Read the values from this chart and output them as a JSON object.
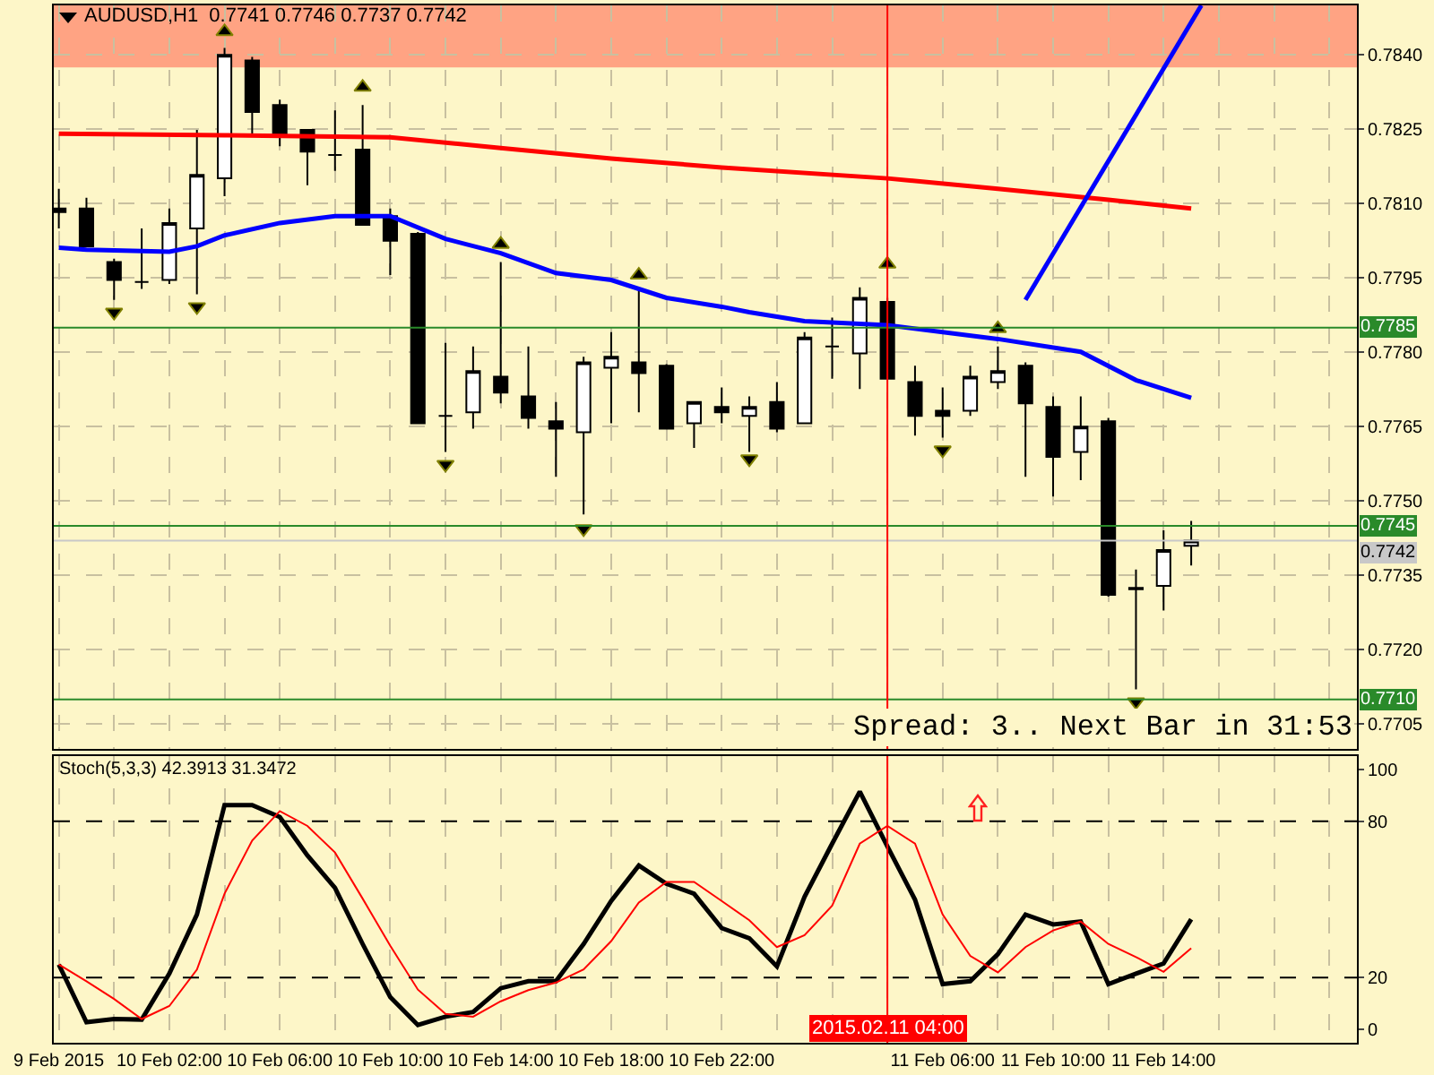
{
  "chart_data": [
    {
      "type": "candlestick",
      "title": "AUDUSD,H1  0.7741 0.7746 0.7737 0.7742",
      "color": "#000000",
      "x": [
        "2015-02-09T22:00",
        "2015-02-09T23:00",
        "2015-02-10T00:00",
        "2015-02-10T01:00",
        "2015-02-10T02:00",
        "2015-02-10T03:00",
        "2015-02-10T04:00",
        "2015-02-10T05:00",
        "2015-02-10T06:00",
        "2015-02-10T07:00",
        "2015-02-10T08:00",
        "2015-02-10T09:00",
        "2015-02-10T10:00",
        "2015-02-10T11:00",
        "2015-02-10T12:00",
        "2015-02-10T13:00",
        "2015-02-10T14:00",
        "2015-02-10T15:00",
        "2015-02-10T16:00",
        "2015-02-10T17:00",
        "2015-02-10T18:00",
        "2015-02-10T19:00",
        "2015-02-10T20:00",
        "2015-02-10T21:00",
        "2015-02-10T22:00",
        "2015-02-10T23:00",
        "2015-02-11T00:00",
        "2015-02-11T01:00",
        "2015-02-11T02:00",
        "2015-02-11T03:00",
        "2015-02-11T04:00",
        "2015-02-11T05:00",
        "2015-02-11T06:00",
        "2015-02-11T07:00",
        "2015-02-11T08:00",
        "2015-02-11T09:00",
        "2015-02-11T10:00",
        "2015-02-11T11:00",
        "2015-02-11T12:00",
        "2015-02-11T13:00",
        "2015-02-11T14:00",
        "2015-02-11T15:00"
      ],
      "ohlc": [
        [
          0.7809,
          0.7813,
          0.7805,
          0.78083
        ],
        [
          0.7809,
          0.78112,
          0.78014,
          0.78014
        ],
        [
          0.77982,
          0.77989,
          0.77906,
          0.77946
        ],
        [
          0.77942,
          0.7805,
          0.77928,
          0.77942
        ],
        [
          0.77946,
          0.7809,
          0.77938,
          0.78061
        ],
        [
          0.7805,
          0.78249,
          0.77917,
          0.78158
        ],
        [
          0.78151,
          0.78414,
          0.78115,
          0.784
        ],
        [
          0.78389,
          0.78396,
          0.78241,
          0.78285
        ],
        [
          0.78299,
          0.7831,
          0.78216,
          0.78241
        ],
        [
          0.78249,
          0.78249,
          0.78137,
          0.78205
        ],
        [
          0.78198,
          0.78288,
          0.78166,
          0.78198
        ],
        [
          0.78209,
          0.78299,
          0.78057,
          0.78057
        ],
        [
          0.78075,
          0.7809,
          0.77956,
          0.78025
        ],
        [
          0.78039,
          0.78043,
          0.77657,
          0.77657
        ],
        [
          0.77672,
          0.77819,
          0.77599,
          0.77672
        ],
        [
          0.77679,
          0.77812,
          0.77646,
          0.77762
        ],
        [
          0.77751,
          0.77982,
          0.77697,
          0.77719
        ],
        [
          0.77711,
          0.77812,
          0.77646,
          0.77668
        ],
        [
          0.77661,
          0.777,
          0.77549,
          0.77646
        ],
        [
          0.77639,
          0.77791,
          0.77473,
          0.7778
        ],
        [
          0.77769,
          0.77841,
          0.77657,
          0.77791
        ],
        [
          0.7778,
          0.77924,
          0.77679,
          0.77758
        ],
        [
          0.77773,
          0.77776,
          0.77646,
          0.77646
        ],
        [
          0.77657,
          0.777,
          0.77607,
          0.777
        ],
        [
          0.7769,
          0.77729,
          0.77657,
          0.77679
        ],
        [
          0.77672,
          0.77711,
          0.77599,
          0.7769
        ],
        [
          0.777,
          0.7774,
          0.77639,
          0.77646
        ],
        [
          0.77657,
          0.77841,
          0.77657,
          0.7783
        ],
        [
          0.77812,
          0.7787,
          0.77747,
          0.77812
        ],
        [
          0.77798,
          0.77931,
          0.77726,
          0.7791
        ],
        [
          0.77902,
          0.7791,
          0.77747,
          0.77747
        ],
        [
          0.7774,
          0.77773,
          0.77632,
          0.77672
        ],
        [
          0.77682,
          0.77729,
          0.77628,
          0.77672
        ],
        [
          0.77682,
          0.77773,
          0.77672,
          0.77751
        ],
        [
          0.7774,
          0.77812,
          0.77726,
          0.77762
        ],
        [
          0.77773,
          0.7778,
          0.77549,
          0.77697
        ],
        [
          0.7769,
          0.77711,
          0.77509,
          0.77589
        ],
        [
          0.77599,
          0.77711,
          0.77542,
          0.7765
        ],
        [
          0.77661,
          0.77668,
          0.77307,
          0.77311
        ],
        [
          0.77325,
          0.77362,
          0.7712,
          0.77322
        ],
        [
          0.77329,
          0.77441,
          0.77279,
          0.77401
        ],
        [
          0.7741,
          0.7746,
          0.7737,
          0.7742
        ]
      ],
      "series": [
        {
          "type": "line",
          "color": "#ff0000",
          "x": [
            "2015-02-09T22:00",
            "2015-02-10T04:00",
            "2015-02-10T10:00",
            "2015-02-10T14:00",
            "2015-02-10T18:00",
            "2015-02-10T22:00",
            "2015-02-11T04:00",
            "2015-02-11T08:00",
            "2015-02-11T12:00",
            "2015-02-11T15:00"
          ],
          "values": [
            0.78241,
            0.78238,
            0.78234,
            0.78212,
            0.78191,
            0.78173,
            0.78151,
            0.7813,
            0.78108,
            0.7809
          ]
        },
        {
          "type": "line",
          "color": "#0000ff",
          "x": [
            "2015-02-09T22:00",
            "2015-02-09T23:00",
            "2015-02-10T02:00",
            "2015-02-10T03:00",
            "2015-02-10T04:00",
            "2015-02-10T06:00",
            "2015-02-10T08:00",
            "2015-02-10T10:00",
            "2015-02-10T12:00",
            "2015-02-10T14:00",
            "2015-02-10T16:00",
            "2015-02-10T18:00",
            "2015-02-10T20:00",
            "2015-02-10T22:00",
            "2015-02-10T23:00",
            "2015-02-11T01:00",
            "2015-02-11T04:00",
            "2015-02-11T08:00",
            "2015-02-11T11:00",
            "2015-02-11T13:00",
            "2015-02-11T15:00"
          ],
          "values": [
            0.78011,
            0.78007,
            0.78003,
            0.78014,
            0.78036,
            0.78061,
            0.78075,
            0.78075,
            0.78029,
            0.78,
            0.7796,
            0.77946,
            0.7791,
            0.77892,
            0.77881,
            0.77863,
            0.77855,
            0.77827,
            0.77801,
            0.77744,
            0.77708
          ]
        },
        {
          "type": "line",
          "color": "#0000ff",
          "x": [
            "2015-02-11T09:00",
            "2015-02-11T15:22"
          ],
          "values": [
            0.77906,
            0.785
          ]
        },
        {
          "type": "scatter",
          "marker": "triangle",
          "color": "#000000",
          "x": [
            "2015-02-10T04:00",
            "2015-02-10T09:00",
            "2015-02-10T14:00",
            "2015-02-10T19:00",
            "2015-02-11T04:00",
            "2015-02-11T08:00"
          ],
          "values": [
            0.78447,
            0.78335,
            0.78018,
            0.77956,
            0.77978,
            0.77848
          ]
        },
        {
          "type": "scatter",
          "marker": "triangle-down",
          "color": "#000000",
          "x": [
            "2015-02-10T00:00",
            "2015-02-10T03:00",
            "2015-02-10T12:00",
            "2015-02-10T17:00",
            "2015-02-10T23:00",
            "2015-02-11T06:00",
            "2015-02-11T13:00"
          ],
          "values": [
            0.77881,
            0.77892,
            0.77574,
            0.77444,
            0.77585,
            0.77603,
            0.77095
          ]
        }
      ],
      "xlim": [
        "2015-02-09T21:49",
        "2015-02-11T21:00"
      ],
      "xticks": [
        {
          "value": "2015-02-09T22:00",
          "label": null
        },
        {
          "value": "2015-02-10T00:00",
          "label": null
        },
        {
          "value": "2015-02-10T02:00",
          "label": null
        },
        {
          "value": "2015-02-10T04:00",
          "label": null
        },
        {
          "value": "2015-02-10T06:00",
          "label": null
        },
        {
          "value": "2015-02-10T08:00",
          "label": null
        },
        {
          "value": "2015-02-10T10:00",
          "label": null
        },
        {
          "value": "2015-02-10T12:00",
          "label": null
        },
        {
          "value": "2015-02-10T14:00",
          "label": null
        },
        {
          "value": "2015-02-10T16:00",
          "label": null
        },
        {
          "value": "2015-02-10T18:00",
          "label": null
        },
        {
          "value": "2015-02-10T20:00",
          "label": null
        },
        {
          "value": "2015-02-10T22:00",
          "label": null
        },
        {
          "value": "2015-02-11T00:00",
          "label": null
        },
        {
          "value": "2015-02-11T02:00",
          "label": null
        },
        {
          "value": "2015-02-11T04:00",
          "label": null
        },
        {
          "value": "2015-02-11T06:00",
          "label": null
        },
        {
          "value": "2015-02-11T08:00",
          "label": null
        },
        {
          "value": "2015-02-11T10:00",
          "label": null
        },
        {
          "value": "2015-02-11T12:00",
          "label": null
        },
        {
          "value": "2015-02-11T14:00",
          "label": null
        },
        {
          "value": "2015-02-11T16:00",
          "label": null
        },
        {
          "value": "2015-02-11T18:00",
          "label": null
        },
        {
          "value": "2015-02-11T20:00",
          "label": null
        }
      ],
      "ylim": [
        0.77,
        0.785
      ],
      "yticks": [
        0.7705,
        {
          "value": 0.772,
          "label": "0.7720"
        },
        0.7735,
        {
          "value": 0.775,
          "label": "0.7750"
        },
        0.7765,
        {
          "value": 0.778,
          "label": "0.7780"
        },
        0.7795,
        {
          "value": 0.781,
          "label": "0.7810"
        },
        0.7825,
        {
          "value": 0.784,
          "label": "0.7840"
        }
      ],
      "tick_labels": "y",
      "grid": true,
      "ref_lines": [
        {
          "axis": "y",
          "value": 0.7785,
          "label": "0.7785",
          "color": "#2a8a2a"
        },
        {
          "axis": "y",
          "value": 0.7745,
          "label": "0.7745",
          "color": "#2a8a2a"
        },
        {
          "axis": "y",
          "value": 0.7742,
          "label": "0.7742",
          "color": "#c8c8c8"
        },
        {
          "axis": "y",
          "value": 0.771,
          "label": "0.7710",
          "color": "#2a8a2a"
        },
        {
          "axis": "x",
          "value": "2015-02-11T04:00",
          "color": "#ff0000"
        }
      ],
      "bands": [
        {
          "axis": "y",
          "from": 0.78375,
          "to": 0.785,
          "color": "#ffa383"
        }
      ],
      "annotations": [
        "Spread: 3.. Next Bar in 31:53"
      ]
    },
    {
      "type": "line",
      "title": "Stoch(5,3,3) 42.3913 31.3472",
      "x": [
        "2015-02-09T22:00",
        "2015-02-09T23:00",
        "2015-02-10T00:00",
        "2015-02-10T01:00",
        "2015-02-10T02:00",
        "2015-02-10T03:00",
        "2015-02-10T04:00",
        "2015-02-10T05:00",
        "2015-02-10T06:00",
        "2015-02-10T07:00",
        "2015-02-10T08:00",
        "2015-02-10T09:00",
        "2015-02-10T10:00",
        "2015-02-10T11:00",
        "2015-02-10T12:00",
        "2015-02-10T13:00",
        "2015-02-10T14:00",
        "2015-02-10T15:00",
        "2015-02-10T16:00",
        "2015-02-10T17:00",
        "2015-02-10T18:00",
        "2015-02-10T19:00",
        "2015-02-10T20:00",
        "2015-02-10T21:00",
        "2015-02-10T22:00",
        "2015-02-10T23:00",
        "2015-02-11T00:00",
        "2015-02-11T01:00",
        "2015-02-11T02:00",
        "2015-02-11T03:00",
        "2015-02-11T04:00",
        "2015-02-11T05:00",
        "2015-02-11T06:00",
        "2015-02-11T07:00",
        "2015-02-11T08:00",
        "2015-02-11T09:00",
        "2015-02-11T10:00",
        "2015-02-11T11:00",
        "2015-02-11T12:00",
        "2015-02-11T13:00",
        "2015-02-11T14:00",
        "2015-02-11T15:00"
      ],
      "series": [
        {
          "color": "#000000",
          "values": [
            25.0,
            2.9,
            4.1,
            3.9,
            21.5,
            44.2,
            86.2,
            86.2,
            81.6,
            66.9,
            54.4,
            32.9,
            12.5,
            1.8,
            5.0,
            6.8,
            15.9,
            18.6,
            18.6,
            32.9,
            49.4,
            63.0,
            56.0,
            52.2,
            39.0,
            35.1,
            24.3,
            51.0,
            71.4,
            91.4,
            70.3,
            49.9,
            17.5,
            18.6,
            29.0,
            44.2,
            40.4,
            41.5,
            17.5,
            21.5,
            25.4,
            42.4
          ]
        },
        {
          "color": "#ff0000",
          "values": [
            25.0,
            18.6,
            11.8,
            4.1,
            9.1,
            23.1,
            52.2,
            72.6,
            83.9,
            78.2,
            68.0,
            50.3,
            32.2,
            15.4,
            6.1,
            5.0,
            10.9,
            15.2,
            18.1,
            23.1,
            34.0,
            48.8,
            56.7,
            56.7,
            49.4,
            42.0,
            31.7,
            36.3,
            47.6,
            71.4,
            78.2,
            71.4,
            44.2,
            28.3,
            22.0,
            31.7,
            38.1,
            41.5,
            32.9,
            27.9,
            22.2,
            31.3
          ]
        }
      ],
      "xlim": [
        "2015-02-09T21:49",
        "2015-02-11T21:00"
      ],
      "xticks": [
        {
          "value": "2015-02-09T22:00",
          "label": "9 Feb 2015"
        },
        {
          "value": "2015-02-10T00:00",
          "label": null
        },
        {
          "value": "2015-02-10T02:00",
          "label": "10 Feb 02:00"
        },
        {
          "value": "2015-02-10T04:00",
          "label": null
        },
        {
          "value": "2015-02-10T06:00",
          "label": "10 Feb 06:00"
        },
        {
          "value": "2015-02-10T08:00",
          "label": null
        },
        {
          "value": "2015-02-10T10:00",
          "label": "10 Feb 10:00"
        },
        {
          "value": "2015-02-10T12:00",
          "label": null
        },
        {
          "value": "2015-02-10T14:00",
          "label": "10 Feb 14:00"
        },
        {
          "value": "2015-02-10T16:00",
          "label": null
        },
        {
          "value": "2015-02-10T18:00",
          "label": "10 Feb 18:00"
        },
        {
          "value": "2015-02-10T20:00",
          "label": null
        },
        {
          "value": "2015-02-10T22:00",
          "label": "10 Feb 22:00"
        },
        {
          "value": "2015-02-11T00:00",
          "label": null
        },
        {
          "value": "2015-02-11T02:00",
          "label": null
        },
        {
          "value": "2015-02-11T04:00",
          "label": null
        },
        {
          "value": "2015-02-11T06:00",
          "label": "11 Feb 06:00"
        },
        {
          "value": "2015-02-11T08:00",
          "label": null
        },
        {
          "value": "2015-02-11T10:00",
          "label": "11 Feb 10:00"
        },
        {
          "value": "2015-02-11T12:00",
          "label": null
        },
        {
          "value": "2015-02-11T14:00",
          "label": "11 Feb 14:00"
        },
        {
          "value": "2015-02-11T16:00",
          "label": null
        },
        {
          "value": "2015-02-11T18:00",
          "label": null
        },
        {
          "value": "2015-02-11T20:00",
          "label": null
        }
      ],
      "ylim": [
        -5,
        105
      ],
      "yticks": [
        0,
        20,
        80,
        100
      ],
      "grid": "x",
      "ref_lines": [
        {
          "axis": "y",
          "value": 80,
          "color": "#000000",
          "line_style": "dashed"
        },
        {
          "axis": "y",
          "value": 20,
          "color": "#000000",
          "line_style": "dashed"
        },
        {
          "axis": "x",
          "value": "2015-02-11T04:00",
          "label": "2015.02.11 04:00",
          "color": "#ff0000"
        }
      ]
    }
  ]
}
